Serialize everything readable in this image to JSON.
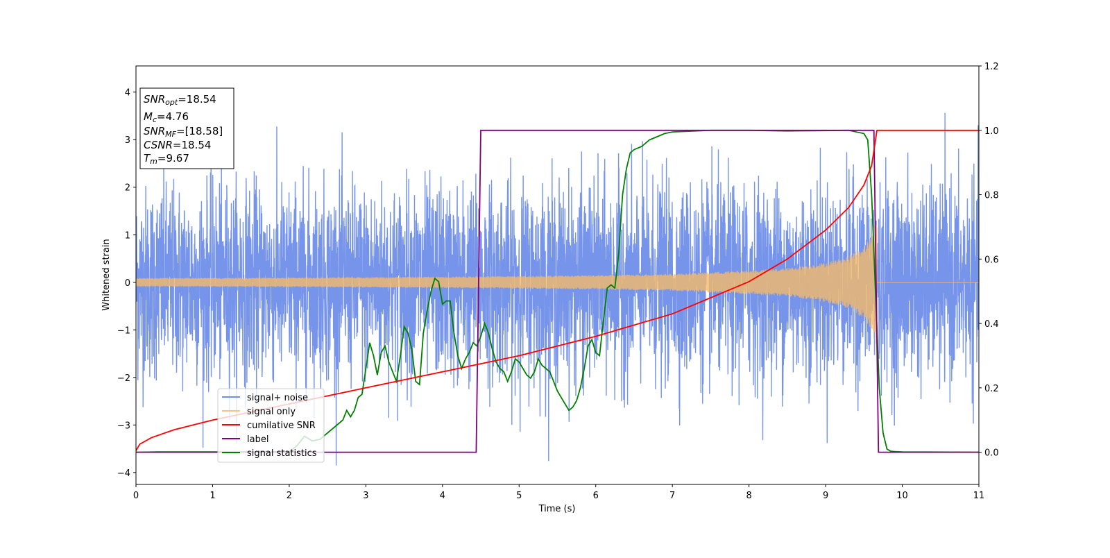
{
  "chart_data": {
    "type": "line",
    "xlabel": "Time (s)",
    "ylabel": "Whitened strain",
    "xlim": [
      0,
      11
    ],
    "ylim": [
      -4.25,
      4.55
    ],
    "y2lim": [
      -0.1,
      1.2
    ],
    "x_ticks": [
      0,
      1,
      2,
      3,
      4,
      5,
      6,
      7,
      8,
      9,
      10,
      11
    ],
    "y_ticks": [
      -4,
      -3,
      -2,
      -1,
      0,
      1,
      2,
      3,
      4
    ],
    "y2_ticks": [
      0.0,
      0.2,
      0.4,
      0.6,
      0.8,
      1.0,
      1.2
    ],
    "grid": false,
    "legend_placement": "lower-left",
    "series": [
      {
        "name": "signal+ noise",
        "axis": "left",
        "color": "#6f8ee8",
        "description_shape": "noise",
        "noise_sigma": 1.0,
        "range_y": [
          -3.85,
          4.2
        ]
      },
      {
        "name": "signal only",
        "axis": "left",
        "color": "#f5b969",
        "envelope": {
          "t": [
            0,
            2,
            4,
            6,
            7,
            8,
            8.5,
            9,
            9.3,
            9.5,
            9.6,
            9.67
          ],
          "amp": [
            0.09,
            0.1,
            0.12,
            0.15,
            0.18,
            0.25,
            0.3,
            0.42,
            0.55,
            0.78,
            1.0,
            1.5
          ]
        },
        "end_time": 9.67
      },
      {
        "name": "cumilative SNR",
        "axis": "right",
        "color": "#ff0000",
        "x": [
          0,
          0.05,
          0.2,
          0.5,
          1,
          2,
          3,
          4,
          5,
          6,
          7,
          7.5,
          8,
          8.5,
          9,
          9.3,
          9.5,
          9.6,
          9.67,
          11
        ],
        "y": [
          0.005,
          0.025,
          0.045,
          0.07,
          0.1,
          0.15,
          0.2,
          0.25,
          0.3,
          0.36,
          0.43,
          0.48,
          0.53,
          0.6,
          0.69,
          0.76,
          0.83,
          0.89,
          1.0,
          1.0
        ]
      },
      {
        "name": "label",
        "axis": "right",
        "color": "#800080",
        "x": [
          0,
          4.44,
          4.5,
          9.63,
          9.69,
          11
        ],
        "y": [
          0,
          0,
          1,
          1,
          0,
          0
        ]
      },
      {
        "name": "signal statistics",
        "axis": "right",
        "color": "#008000",
        "x": [
          0,
          0.3,
          1,
          1.5,
          2,
          2.1,
          2.2,
          2.3,
          2.4,
          2.5,
          2.6,
          2.7,
          2.75,
          2.8,
          2.85,
          2.9,
          2.95,
          3.0,
          3.05,
          3.1,
          3.15,
          3.2,
          3.25,
          3.3,
          3.35,
          3.4,
          3.45,
          3.5,
          3.55,
          3.6,
          3.65,
          3.7,
          3.75,
          3.8,
          3.85,
          3.9,
          3.95,
          4.0,
          4.05,
          4.1,
          4.15,
          4.2,
          4.25,
          4.3,
          4.35,
          4.4,
          4.45,
          4.5,
          4.55,
          4.6,
          4.65,
          4.7,
          4.75,
          4.8,
          4.85,
          4.9,
          4.95,
          5.0,
          5.05,
          5.1,
          5.15,
          5.2,
          5.25,
          5.3,
          5.35,
          5.4,
          5.45,
          5.5,
          5.55,
          5.6,
          5.65,
          5.7,
          5.75,
          5.8,
          5.85,
          5.9,
          5.95,
          6.0,
          6.05,
          6.1,
          6.15,
          6.2,
          6.25,
          6.3,
          6.35,
          6.4,
          6.45,
          6.5,
          6.6,
          6.7,
          6.8,
          6.9,
          7.0,
          7.5,
          8.0,
          8.5,
          9.0,
          9.3,
          9.5,
          9.55,
          9.6,
          9.65,
          9.7,
          9.75,
          9.8,
          9.85,
          9.9,
          10.0,
          11
        ],
        "y": [
          0.0,
          0.001,
          0.001,
          0.001,
          0.002,
          0.02,
          0.05,
          0.035,
          0.04,
          0.06,
          0.08,
          0.1,
          0.13,
          0.11,
          0.13,
          0.17,
          0.18,
          0.26,
          0.34,
          0.3,
          0.24,
          0.31,
          0.33,
          0.28,
          0.25,
          0.22,
          0.3,
          0.39,
          0.37,
          0.32,
          0.22,
          0.21,
          0.37,
          0.44,
          0.5,
          0.54,
          0.53,
          0.46,
          0.47,
          0.47,
          0.37,
          0.3,
          0.26,
          0.29,
          0.31,
          0.34,
          0.33,
          0.36,
          0.4,
          0.37,
          0.32,
          0.28,
          0.26,
          0.25,
          0.22,
          0.25,
          0.29,
          0.28,
          0.26,
          0.24,
          0.23,
          0.25,
          0.29,
          0.27,
          0.26,
          0.25,
          0.22,
          0.19,
          0.17,
          0.15,
          0.13,
          0.14,
          0.16,
          0.2,
          0.26,
          0.33,
          0.35,
          0.31,
          0.3,
          0.41,
          0.51,
          0.52,
          0.51,
          0.62,
          0.8,
          0.88,
          0.93,
          0.94,
          0.95,
          0.97,
          0.98,
          0.99,
          0.995,
          1.0,
          1.0,
          0.998,
          0.999,
          1.0,
          0.99,
          0.97,
          0.8,
          0.5,
          0.2,
          0.06,
          0.01,
          0.003,
          0.002,
          0.001,
          0.0
        ]
      }
    ],
    "annotations": [
      {
        "main": "SNR",
        "sub": "opt",
        "value": "=18.54"
      },
      {
        "main": "M",
        "sub": "c",
        "value": "=4.76"
      },
      {
        "main": "SNR",
        "sub": "MF",
        "value": "=[18.58]"
      },
      {
        "main": "CSNR",
        "sub": "",
        "value": "=18.54"
      },
      {
        "main": "T",
        "sub": "m",
        "value": "=9.67"
      }
    ]
  }
}
